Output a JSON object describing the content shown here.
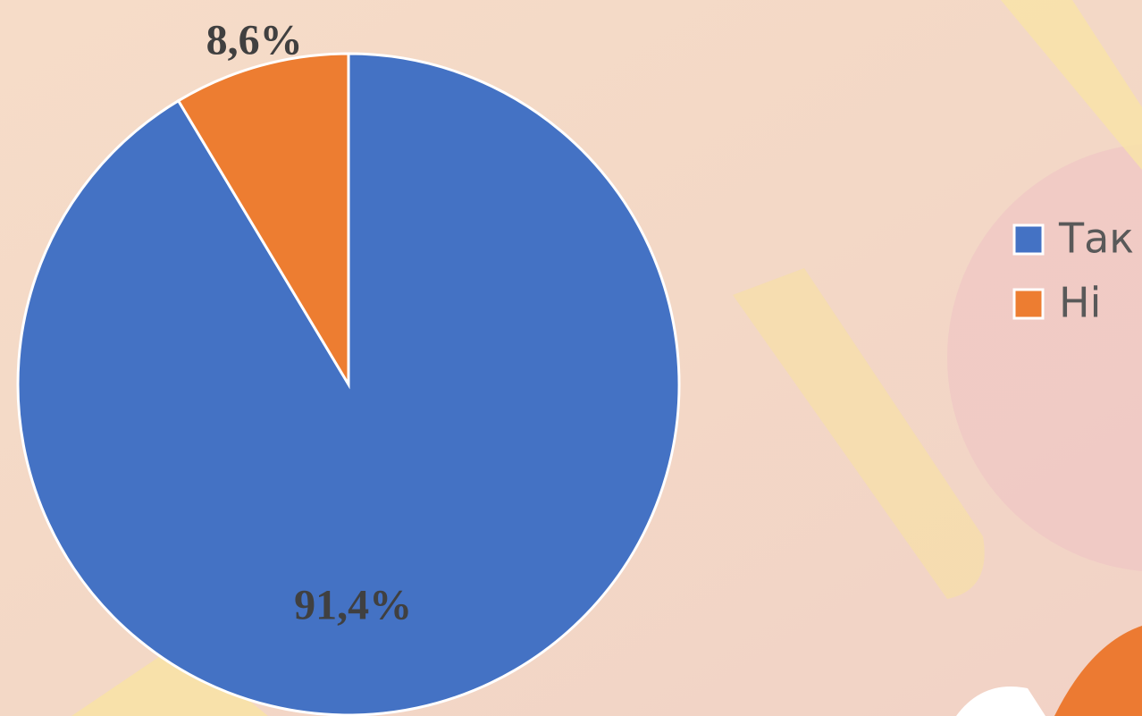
{
  "chart_data": {
    "type": "pie",
    "categories": [
      "Так",
      "Ні"
    ],
    "values": [
      91.4,
      8.6
    ],
    "value_labels": [
      "91,4%",
      "8,6%"
    ],
    "colors": [
      "#4472c4",
      "#ed7d31"
    ],
    "legend": "right"
  }
}
